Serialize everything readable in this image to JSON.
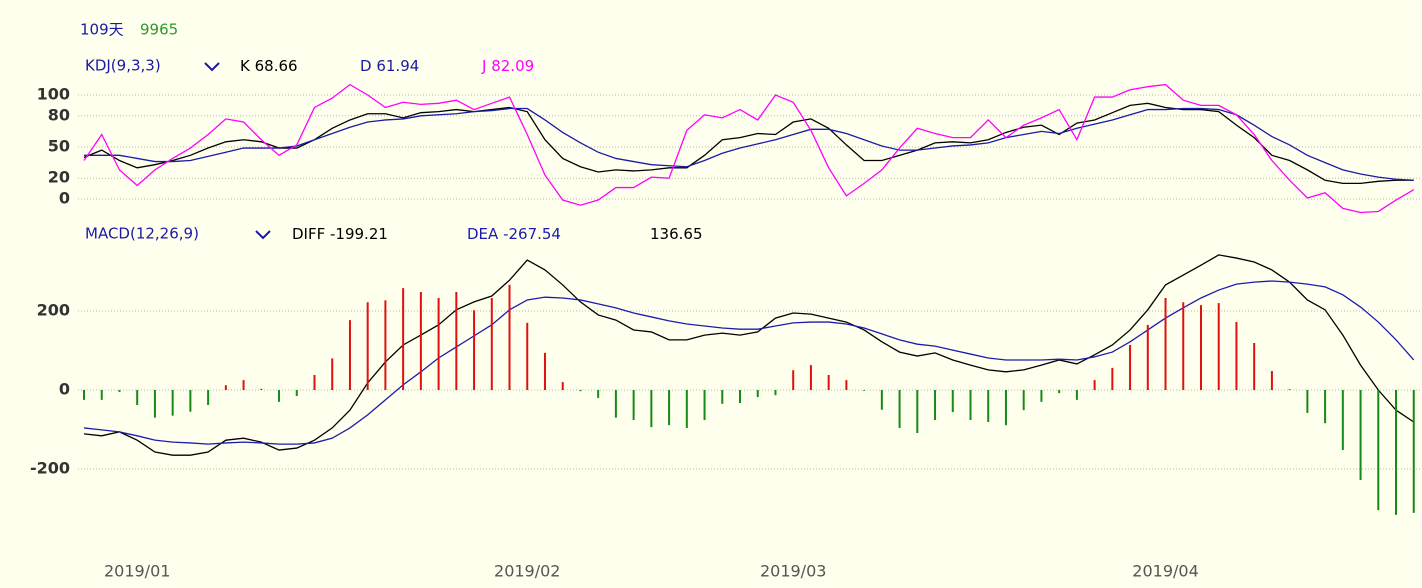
{
  "header": {
    "days": "109天",
    "value": "9965"
  },
  "chart_data": [
    {
      "type": "line",
      "title": "KDJ(9,3,3)",
      "ylim": [
        -10,
        110
      ],
      "yticks": [
        0,
        20,
        50,
        80,
        100
      ],
      "grid": true,
      "series": [
        {
          "name": "K",
          "readout": 68.66,
          "color": "#000000",
          "values": [
            40,
            47,
            37,
            30,
            33,
            37,
            42,
            49,
            55,
            57,
            55,
            49,
            49,
            57,
            68,
            76,
            82,
            82,
            78,
            83,
            84,
            86,
            84,
            86,
            88,
            84,
            57,
            39,
            31,
            26,
            28,
            27,
            28,
            30,
            30,
            42,
            57,
            59,
            63,
            62,
            74,
            77,
            68,
            52,
            37,
            37,
            42,
            47,
            54,
            55,
            54,
            57,
            64,
            69,
            71,
            62,
            73,
            76,
            83,
            90,
            92,
            88,
            86,
            86,
            84,
            71,
            59,
            42,
            37,
            28,
            18,
            15,
            15,
            17,
            18,
            18
          ]
        },
        {
          "name": "D",
          "readout": 61.94,
          "color": "#1a1aa6",
          "values": [
            42,
            42,
            42,
            39,
            36,
            36,
            37,
            41,
            45,
            49,
            49,
            49,
            51,
            57,
            63,
            69,
            74,
            76,
            77,
            80,
            81,
            82,
            84,
            85,
            87,
            87,
            76,
            64,
            54,
            45,
            39,
            36,
            33,
            32,
            31,
            37,
            44,
            49,
            53,
            57,
            62,
            67,
            67,
            63,
            57,
            51,
            47,
            47,
            49,
            51,
            52,
            54,
            59,
            62,
            65,
            63,
            68,
            72,
            76,
            81,
            86,
            86,
            87,
            87,
            86,
            81,
            71,
            60,
            52,
            42,
            35,
            28,
            24,
            21,
            19,
            18
          ]
        },
        {
          "name": "J",
          "readout": 82.09,
          "color": "#ff00ff",
          "values": [
            37,
            62,
            28,
            13,
            28,
            39,
            49,
            62,
            77,
            74,
            57,
            42,
            52,
            88,
            97,
            110,
            100,
            88,
            93,
            91,
            92,
            95,
            86,
            92,
            98,
            62,
            23,
            -1,
            -6,
            -1,
            11,
            11,
            21,
            20,
            66,
            81,
            78,
            86,
            76,
            100,
            93,
            66,
            30,
            3,
            15,
            28,
            49,
            68,
            63,
            59,
            59,
            76,
            59,
            71,
            78,
            86,
            57,
            98,
            98,
            105,
            108,
            110,
            95,
            90,
            90,
            81,
            62,
            37,
            18,
            1,
            6,
            -9,
            -13,
            -12,
            -1,
            9
          ]
        }
      ]
    },
    {
      "type": "macd",
      "title": "MACD(12,26,9)",
      "ylim": [
        -350,
        350
      ],
      "yticks": [
        -200,
        0,
        200
      ],
      "grid": true,
      "categories": [
        null,
        null,
        null,
        "2019/01",
        null,
        null,
        null,
        null,
        null,
        null,
        null,
        null,
        null,
        null,
        null,
        null,
        null,
        null,
        null,
        null,
        null,
        null,
        null,
        null,
        null,
        "2019/02",
        null,
        null,
        null,
        null,
        null,
        null,
        null,
        null,
        null,
        null,
        null,
        null,
        null,
        null,
        "2019/03",
        null,
        null,
        null,
        null,
        null,
        null,
        null,
        null,
        null,
        null,
        null,
        null,
        null,
        null,
        null,
        null,
        null,
        null,
        null,
        null,
        "2019/04",
        null,
        null,
        null,
        null,
        null,
        null,
        null,
        null,
        null,
        null,
        null,
        null,
        null,
        null
      ],
      "series": [
        {
          "name": "DIFF",
          "readout": -199.21,
          "kind": "line",
          "color": "#000000",
          "values": [
            -111,
            -116,
            -106,
            -127,
            -157,
            -165,
            -165,
            -157,
            -127,
            -122,
            -132,
            -152,
            -147,
            -127,
            -96,
            -51,
            18,
            71,
            114,
            139,
            165,
            203,
            223,
            238,
            278,
            329,
            304,
            266,
            223,
            190,
            177,
            152,
            147,
            127,
            127,
            139,
            144,
            139,
            147,
            182,
            195,
            192,
            182,
            172,
            152,
            122,
            96,
            86,
            94,
            76,
            63,
            51,
            46,
            51,
            63,
            76,
            66,
            89,
            114,
            152,
            203,
            266,
            291,
            316,
            342,
            334,
            324,
            304,
            273,
            228,
            203,
            139,
            63,
            0,
            -51,
            -81
          ]
        },
        {
          "name": "DEA",
          "readout": -267.54,
          "kind": "line",
          "color": "#1c1cb0",
          "values": [
            -96,
            -101,
            -106,
            -116,
            -127,
            -132,
            -134,
            -137,
            -134,
            -132,
            -134,
            -137,
            -137,
            -134,
            -122,
            -96,
            -63,
            -25,
            13,
            46,
            81,
            109,
            137,
            165,
            203,
            228,
            235,
            233,
            228,
            218,
            208,
            195,
            185,
            175,
            167,
            162,
            157,
            154,
            154,
            162,
            170,
            172,
            172,
            167,
            157,
            142,
            127,
            116,
            111,
            101,
            91,
            81,
            76,
            76,
            76,
            78,
            76,
            84,
            96,
            122,
            152,
            182,
            208,
            233,
            253,
            268,
            273,
            276,
            273,
            268,
            261,
            241,
            210,
            172,
            127,
            76
          ]
        },
        {
          "readout": 136.65,
          "kind": "bar",
          "color_up": "#e01010",
          "color_down": "#158a15",
          "values": [
            -25,
            -25,
            -5,
            -38,
            -70,
            -65,
            -55,
            -38,
            12,
            25,
            3,
            -30,
            -15,
            38,
            80,
            177,
            222,
            227,
            258,
            248,
            233,
            248,
            202,
            233,
            266,
            170,
            94,
            20,
            -3,
            -20,
            -70,
            -76,
            -94,
            -89,
            -96,
            -76,
            -35,
            -33,
            -18,
            -13,
            50,
            63,
            38,
            25,
            -2,
            -50,
            -96,
            -109,
            -76,
            -56,
            -76,
            -81,
            -89,
            -51,
            -30,
            -8,
            -25,
            25,
            56,
            114,
            165,
            233,
            222,
            215,
            220,
            172,
            119,
            48,
            2,
            -58,
            -84,
            -152,
            -228,
            -304,
            -316,
            -311
          ]
        }
      ]
    }
  ]
}
